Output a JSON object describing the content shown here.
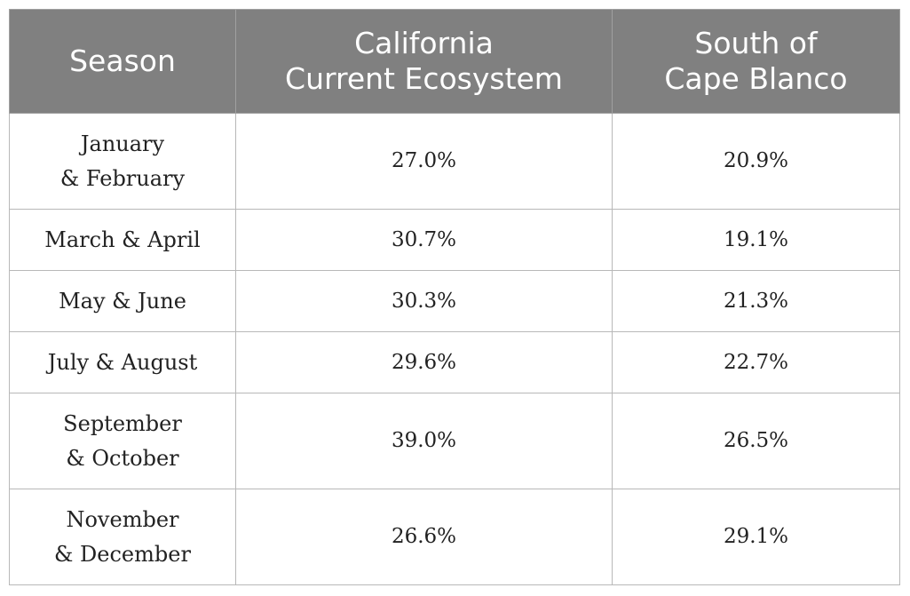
{
  "table": {
    "headers": [
      "Season",
      "California\nCurrent Ecosystem",
      "South of\nCape Blanco"
    ],
    "rows": [
      {
        "season": "January\n& February",
        "cce": "27.0%",
        "scb": "20.9%"
      },
      {
        "season": "March & April",
        "cce": "30.7%",
        "scb": "19.1%"
      },
      {
        "season": "May & June",
        "cce": "30.3%",
        "scb": "21.3%"
      },
      {
        "season": "July & August",
        "cce": "29.6%",
        "scb": "22.7%"
      },
      {
        "season": "September\n& October",
        "cce": "39.0%",
        "scb": "26.5%"
      },
      {
        "season": "November\n& December",
        "cce": "26.6%",
        "scb": "29.1%"
      }
    ]
  },
  "colors": {
    "header_bg": "#808080",
    "header_text": "#ffffff",
    "border": "#b8b8b8",
    "body_text": "#222222"
  }
}
